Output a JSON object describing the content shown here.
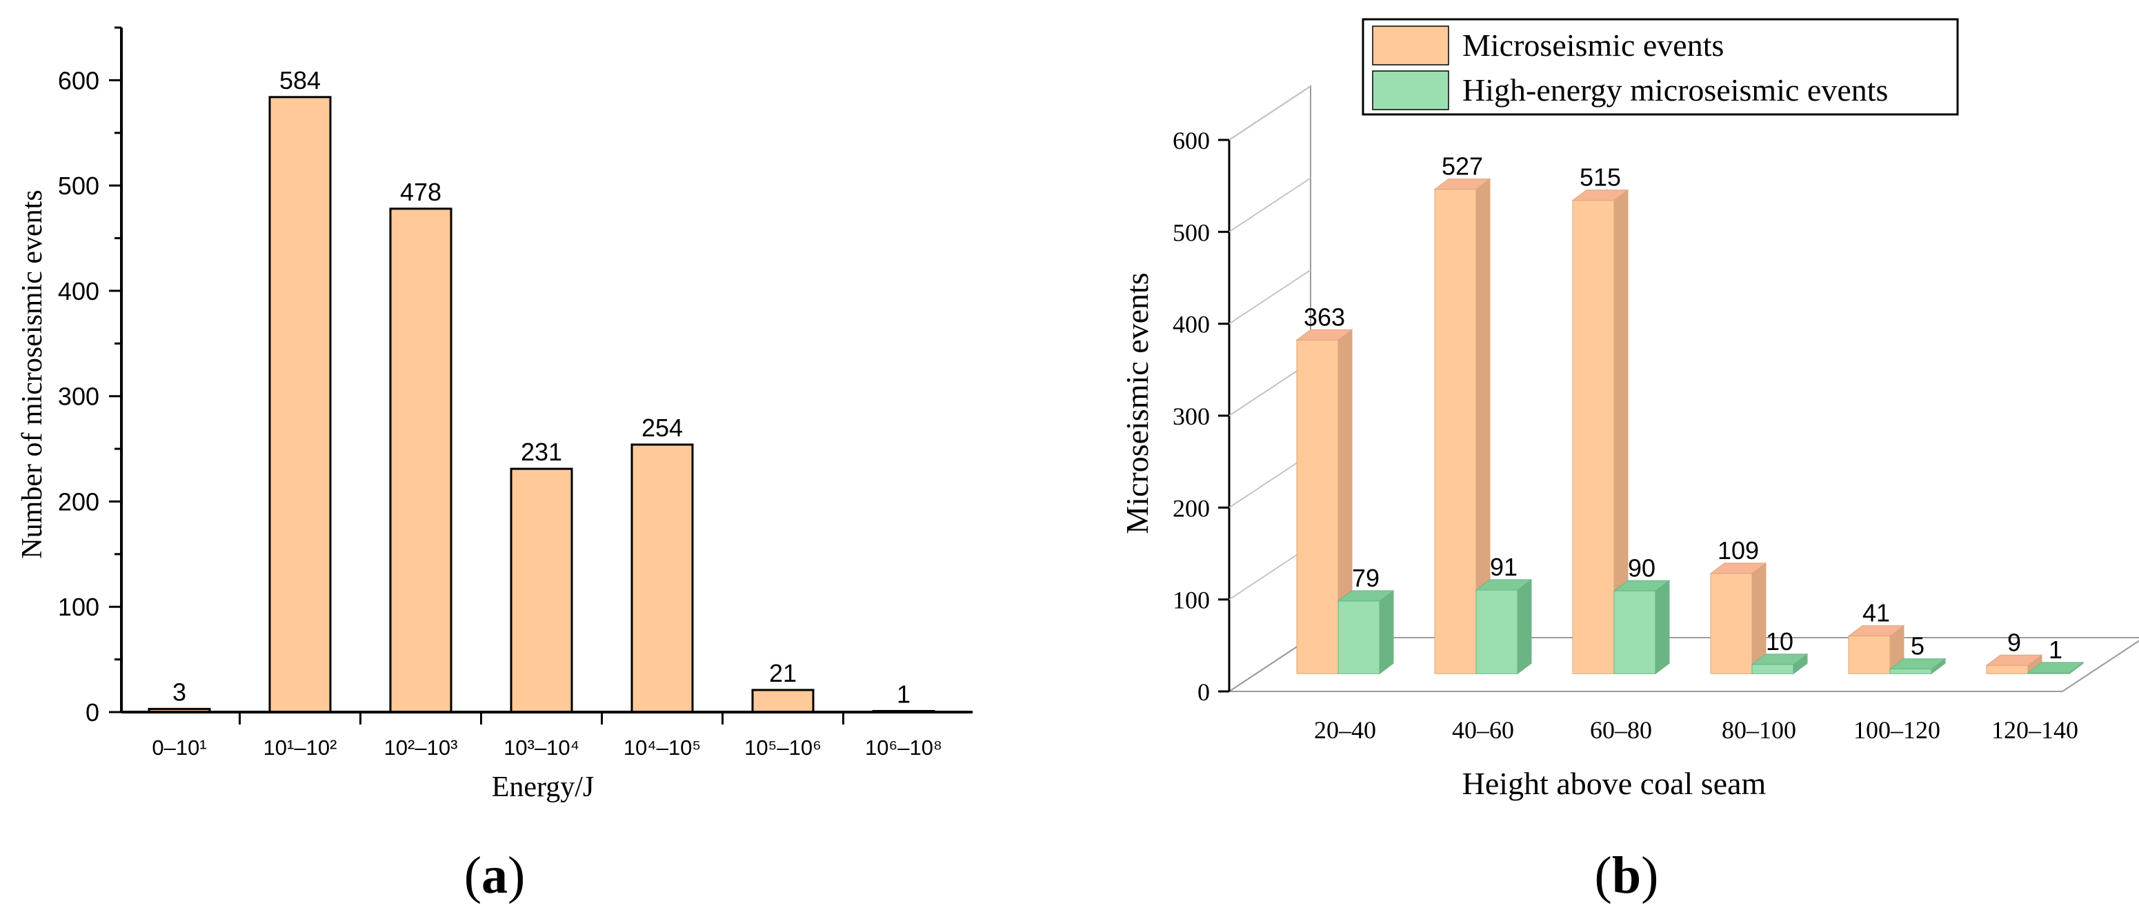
{
  "colors": {
    "orange_front": "#ffc999",
    "orange_side": "#dba57e",
    "orange_top": "#f7b594",
    "green_front": "#9bdfb1",
    "green_side": "#6ab583",
    "green_top": "#7fcb98",
    "axis": "#000000"
  },
  "panel_a": {
    "caption": "(a)",
    "chart_data": {
      "type": "bar",
      "categories": [
        "0–10¹",
        "10¹–10²",
        "10²–10³",
        "10³–10⁴",
        "10⁴–10⁵",
        "10⁵–10⁶",
        "10⁶–10⁸"
      ],
      "values": [
        3,
        584,
        478,
        231,
        254,
        21,
        1
      ],
      "data_labels": [
        "3",
        "584",
        "478",
        "231",
        "254",
        "21",
        "1"
      ],
      "xlabel": "Energy/J",
      "ylabel": "Number of microseismic events",
      "ylim": [
        0,
        650
      ],
      "yticks": [
        0,
        100,
        200,
        300,
        400,
        500,
        600
      ],
      "grid": false
    }
  },
  "panel_b": {
    "caption": "(b)",
    "chart_data": {
      "type": "bar",
      "style": "3d-clustered",
      "categories": [
        "20–40",
        "40–60",
        "60–80",
        "80–100",
        "100–120",
        "120–140"
      ],
      "series": [
        {
          "name": "Microseismic events",
          "values": [
            363,
            527,
            515,
            109,
            41,
            9
          ],
          "labels": [
            "363",
            "527",
            "515",
            "109",
            "41",
            "9"
          ]
        },
        {
          "name": "High-energy microseismic events",
          "values": [
            79,
            91,
            90,
            10,
            5,
            1
          ],
          "labels": [
            "79",
            "91",
            "90",
            "10",
            "5",
            "1"
          ]
        }
      ],
      "xlabel": "Height above coal seam",
      "ylabel": "Microseismic events",
      "ylim": [
        0,
        600
      ],
      "yticks": [
        0,
        100,
        200,
        300,
        400,
        500,
        600
      ],
      "legend": "top",
      "grid": true
    }
  }
}
